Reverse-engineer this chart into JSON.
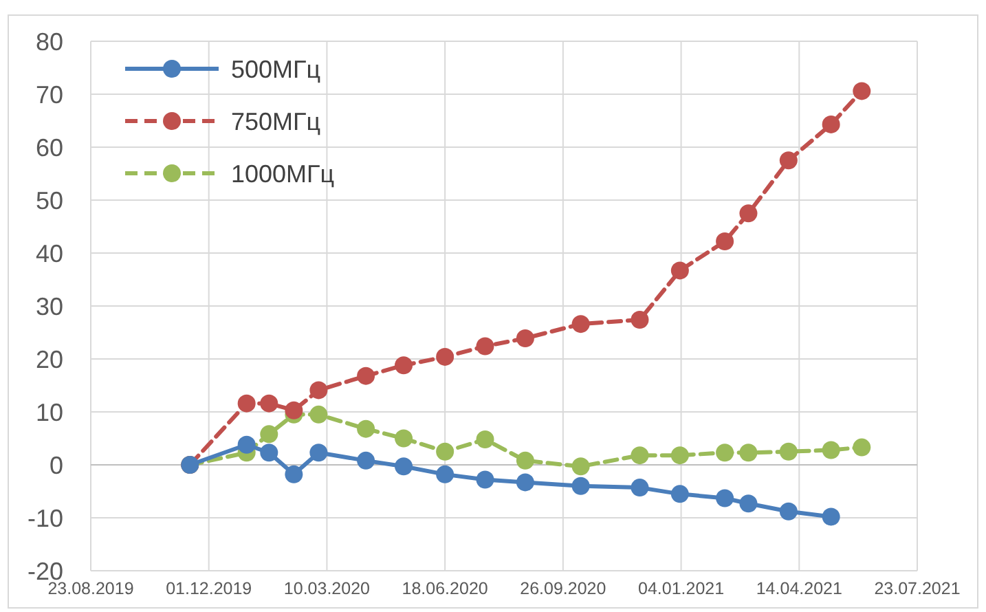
{
  "chart_data": {
    "type": "line",
    "x": [
      "2019-11-15",
      "2020-01-02",
      "2020-01-21",
      "2020-02-11",
      "2020-03-03",
      "2020-04-12",
      "2020-05-14",
      "2020-06-18",
      "2020-07-22",
      "2020-08-25",
      "2020-10-11",
      "2020-11-30",
      "2021-01-03",
      "2021-02-10",
      "2021-03-02",
      "2021-04-05",
      "2021-05-11",
      "2021-06-06"
    ],
    "series": [
      {
        "name": "500МГц",
        "color": "#4a7ebb",
        "line_style": "solid",
        "values": [
          0,
          3.8,
          2.3,
          -1.8,
          2.3,
          0.8,
          -0.3,
          -1.8,
          -2.8,
          -3.3,
          -4,
          -4.3,
          -5.5,
          -6.3,
          -7.3,
          -8.8,
          -9.8,
          null
        ]
      },
      {
        "name": "750МГц",
        "color": "#c0504d",
        "line_style": "dashed",
        "values": [
          0,
          11.6,
          11.6,
          10.3,
          14.1,
          16.8,
          18.8,
          20.4,
          22.4,
          23.9,
          26.6,
          27.4,
          36.7,
          42.2,
          47.5,
          57.5,
          64.3,
          70.6
        ]
      },
      {
        "name": "1000МГц",
        "color": "#9bbb59",
        "line_style": "dashed",
        "values": [
          0,
          2.3,
          5.8,
          9.5,
          9.5,
          6.8,
          5,
          2.5,
          4.8,
          0.8,
          -0.3,
          1.8,
          1.8,
          2.3,
          2.3,
          2.5,
          2.8,
          3.3
        ]
      }
    ],
    "xlim": [
      "2019-08-23",
      "2021-07-23"
    ],
    "xticks": [
      {
        "value": "2019-08-23",
        "label": "23.08.2019"
      },
      {
        "value": "2019-12-01",
        "label": "01.12.2019"
      },
      {
        "value": "2020-03-10",
        "label": "10.03.2020"
      },
      {
        "value": "2020-06-18",
        "label": "18.06.2020"
      },
      {
        "value": "2020-09-26",
        "label": "26.09.2020"
      },
      {
        "value": "2021-01-04",
        "label": "04.01.2021"
      },
      {
        "value": "2021-04-14",
        "label": "14.04.2021"
      },
      {
        "value": "2021-07-23",
        "label": "23.07.2021"
      }
    ],
    "ylim": [
      -20,
      80
    ],
    "yticks": [
      -20,
      -10,
      0,
      10,
      20,
      30,
      40,
      50,
      60,
      70,
      80
    ],
    "grid": true,
    "legend": "top left",
    "marker": "circle"
  }
}
